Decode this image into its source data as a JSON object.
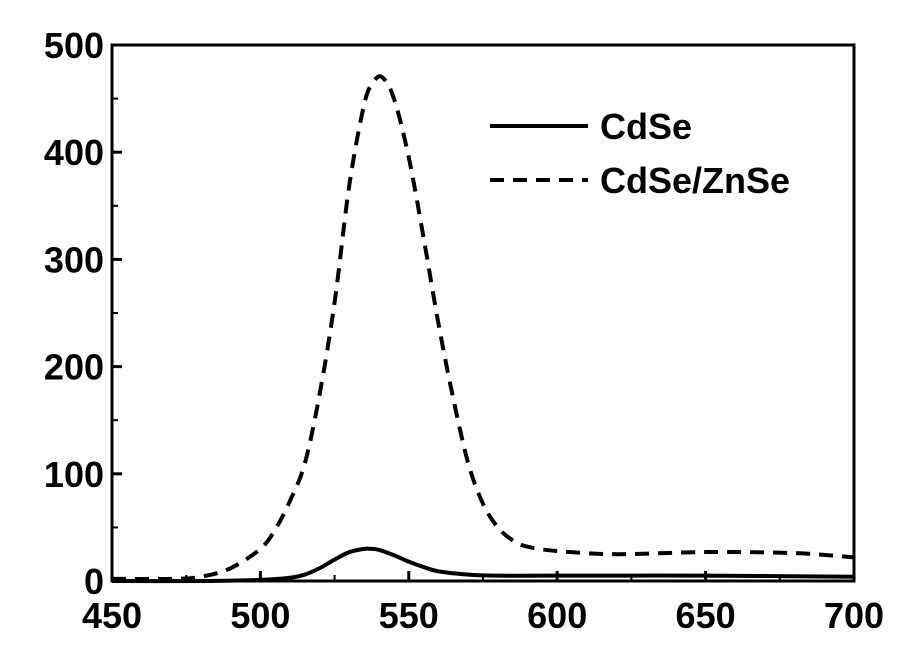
{
  "chart_data": {
    "type": "line",
    "title": "",
    "xlabel": "",
    "ylabel": "",
    "xlim": [
      450,
      700
    ],
    "ylim": [
      0,
      500
    ],
    "x_ticks": [
      450,
      500,
      550,
      600,
      650,
      700
    ],
    "y_ticks": [
      0,
      100,
      200,
      300,
      400,
      500
    ],
    "x_tick_labels": [
      "450",
      "500",
      "550",
      "600",
      "650",
      "700"
    ],
    "y_tick_labels": [
      "0",
      "100",
      "200",
      "300",
      "400",
      "500"
    ],
    "grid": false,
    "legend_position": "top-right",
    "series": [
      {
        "name": "CdSe",
        "style": "solid",
        "color": "#000000",
        "x": [
          450,
          480,
          500,
          510,
          515,
          520,
          525,
          530,
          535,
          537,
          540,
          545,
          550,
          555,
          560,
          570,
          580,
          600,
          650,
          700
        ],
        "y": [
          0,
          0,
          1,
          3,
          6,
          12,
          20,
          27,
          30,
          30,
          29,
          24,
          18,
          13,
          9,
          6,
          5,
          5,
          5,
          4
        ]
      },
      {
        "name": "CdSe/ZnSe",
        "style": "dashed",
        "color": "#000000",
        "x": [
          450,
          470,
          480,
          490,
          500,
          505,
          510,
          515,
          520,
          525,
          530,
          535,
          538,
          541,
          545,
          550,
          555,
          560,
          565,
          570,
          575,
          580,
          585,
          590,
          600,
          620,
          650,
          680,
          700
        ],
        "y": [
          2,
          2,
          4,
          12,
          30,
          48,
          75,
          110,
          175,
          260,
          370,
          445,
          465,
          470,
          450,
          395,
          320,
          240,
          170,
          110,
          72,
          50,
          38,
          32,
          28,
          25,
          27,
          26,
          22
        ]
      }
    ]
  }
}
